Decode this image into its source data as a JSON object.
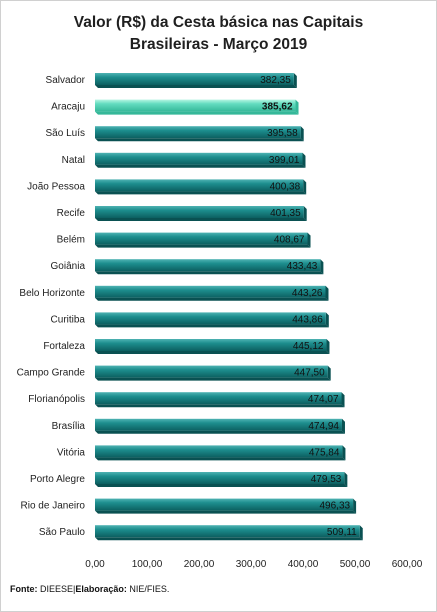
{
  "chart_data": {
    "type": "bar",
    "orientation": "horizontal",
    "title": "Valor (R$) da Cesta básica nas Capitais",
    "subtitle": "Brasileiras - Março 2019",
    "categories": [
      "Salvador",
      "Aracaju",
      "São Luís",
      "Natal",
      "João Pessoa",
      "Recife",
      "Belém",
      "Goiânia",
      "Belo Horizonte",
      "Curitiba",
      "Fortaleza",
      "Campo Grande",
      "Florianópolis",
      "Brasília",
      "Vitória",
      "Porto Alegre",
      "Rio de Janeiro",
      "São Paulo"
    ],
    "values": [
      382.35,
      385.62,
      395.58,
      399.01,
      400.38,
      401.35,
      408.67,
      433.43,
      443.26,
      443.86,
      445.12,
      447.5,
      474.07,
      474.94,
      475.84,
      479.53,
      496.33,
      509.11
    ],
    "value_labels": [
      "382,35",
      "385,62",
      "395,58",
      "399,01",
      "400,38",
      "401,35",
      "408,67",
      "433,43",
      "443,26",
      "443,86",
      "445,12",
      "447,50",
      "474,07",
      "474,94",
      "475,84",
      "479,53",
      "496,33",
      "509,11"
    ],
    "highlight_index": 1,
    "xlim": [
      0,
      600
    ],
    "xticks": [
      "0,00",
      "100,00",
      "200,00",
      "300,00",
      "400,00",
      "500,00",
      "600,00"
    ],
    "xlabel": "",
    "ylabel": "",
    "grid": false,
    "colors": {
      "bar_top": "#4fb3b3",
      "bar_main": "#1d8e8e",
      "bar_bottom": "#0c5f60",
      "bar_side": "#0a5152",
      "highlight_top": "#b6f5e2",
      "highlight_main": "#63dcc0",
      "highlight_bottom": "#35b899"
    }
  },
  "footer": {
    "fonte_label": "Fonte:",
    "fonte_value": " DIEESE",
    "separator": "|",
    "elaboracao_label": "Elaboração:",
    "elaboracao_value": " NIE/FIES."
  }
}
